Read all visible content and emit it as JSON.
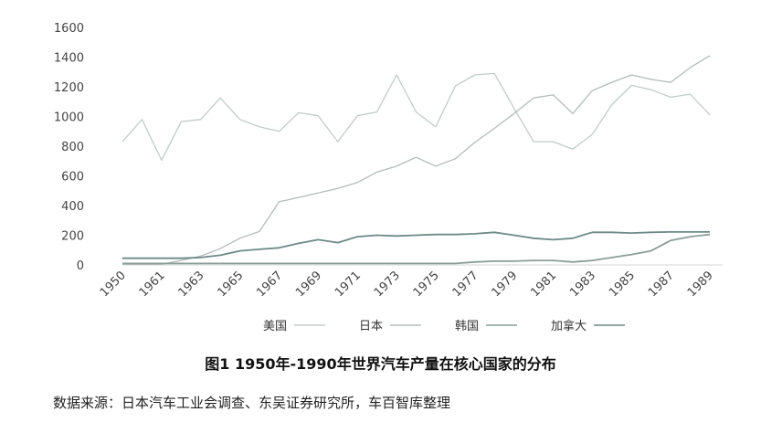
{
  "chart_data": {
    "type": "line",
    "title": "图1 1950年-1990年世界汽车产量在核心国家的分布",
    "xlabel": "",
    "ylabel": "",
    "x_tick_labels": [
      "1950",
      "1961",
      "1963",
      "1965",
      "1967",
      "1969",
      "1971",
      "1973",
      "1975",
      "1977",
      "1979",
      "1981",
      "1983",
      "1985",
      "1987",
      "1989"
    ],
    "y_ticks": [
      0,
      200,
      400,
      600,
      800,
      1000,
      1200,
      1400,
      1600
    ],
    "ylim": [
      0,
      1600
    ],
    "grid": false,
    "legend_position": "bottom",
    "series": [
      {
        "name": "美国",
        "color": "#c2cbc7",
        "values": [
          830,
          980,
          705,
          965,
          980,
          1125,
          980,
          930,
          900,
          1025,
          1005,
          830,
          1005,
          1030,
          1280,
          1030,
          930,
          1205,
          1280,
          1290,
          1055,
          830,
          830,
          780,
          880,
          1080,
          1210,
          1180,
          1130,
          1150,
          1010
        ]
      },
      {
        "name": "日本",
        "color": "#b3bcb8",
        "values": [
          5,
          5,
          5,
          30,
          60,
          110,
          180,
          225,
          425,
          455,
          485,
          515,
          555,
          625,
          665,
          725,
          665,
          715,
          825,
          920,
          1020,
          1125,
          1145,
          1020,
          1175,
          1230,
          1280,
          1250,
          1230,
          1330,
          1410
        ]
      },
      {
        "name": "韩国",
        "color": "#8a9e9a",
        "values": [
          10,
          10,
          10,
          10,
          10,
          10,
          10,
          10,
          10,
          10,
          10,
          10,
          10,
          10,
          10,
          10,
          10,
          10,
          20,
          25,
          25,
          30,
          30,
          20,
          30,
          50,
          70,
          95,
          165,
          190,
          205
        ]
      },
      {
        "name": "加拿大",
        "color": "#6c8a86",
        "values": [
          45,
          45,
          45,
          45,
          50,
          65,
          95,
          105,
          115,
          145,
          170,
          150,
          190,
          200,
          195,
          200,
          205,
          205,
          210,
          220,
          200,
          180,
          170,
          180,
          220,
          220,
          215,
          220,
          222,
          222,
          222
        ]
      }
    ]
  },
  "source": "数据来源：日本汽车工业会调查、东吴证券研究所，车百智库整理"
}
